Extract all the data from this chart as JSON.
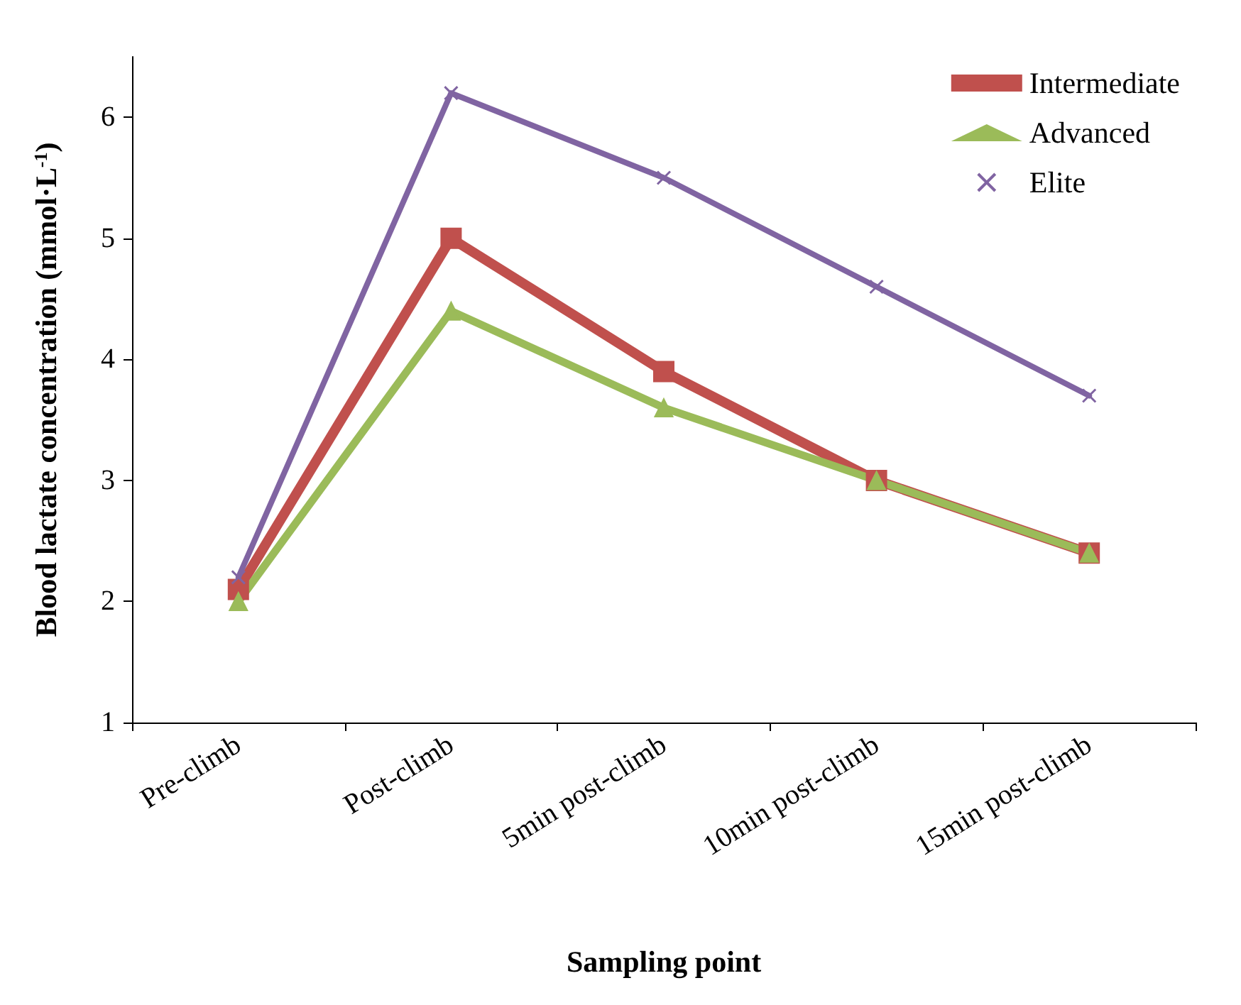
{
  "chart_data": {
    "type": "line",
    "xlabel": "Sampling point",
    "ylabel": "Blood lactate concentration (mmol·L$^{-1}$)",
    "categories": [
      "Pre-climb",
      "Post-climb",
      "5min post-climb",
      "10min post-climb",
      "15min post-climb"
    ],
    "series": [
      {
        "name": "Intermediate",
        "color": "#c0504d",
        "marker": "square",
        "values": [
          2.1,
          5.0,
          3.9,
          3.0,
          2.4
        ]
      },
      {
        "name": "Advanced",
        "color": "#9bbb59",
        "marker": "triangle",
        "values": [
          2.0,
          4.4,
          3.6,
          3.0,
          2.4
        ]
      },
      {
        "name": "Elite",
        "color": "#8064a2",
        "marker": "cross",
        "values": [
          2.2,
          6.2,
          5.5,
          4.6,
          3.7
        ]
      }
    ],
    "ylim": [
      1,
      6.5
    ],
    "yticks": [
      1,
      2,
      3,
      4,
      5,
      6
    ],
    "grid": false,
    "legend": "top right",
    "line_style": "solid"
  }
}
